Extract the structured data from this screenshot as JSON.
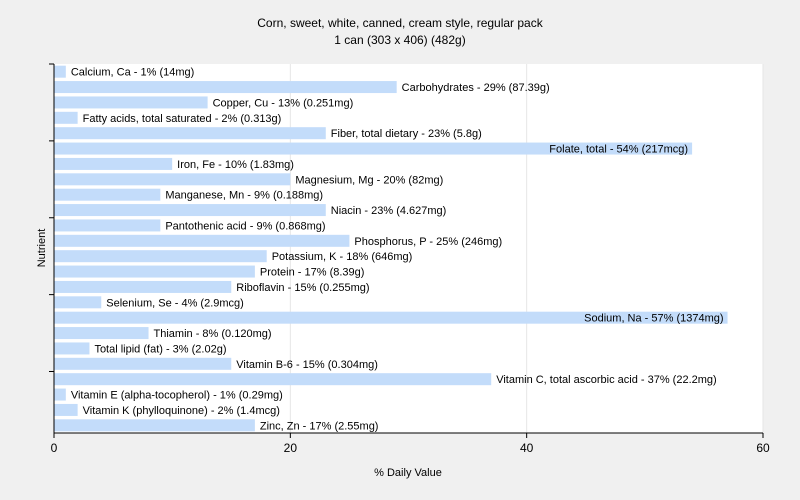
{
  "colors": {
    "background": "#f0f0f0",
    "plot_background": "#ffffff",
    "bar": "#c3dcfa",
    "axis": "#000000",
    "grid": "#e6e6e6"
  },
  "chart_data": {
    "type": "bar",
    "orientation": "horizontal",
    "title": "Corn, sweet, white, canned, cream style, regular pack",
    "subtitle": "1 can (303 x 406) (482g)",
    "xlabel": "% Daily Value",
    "ylabel": "Nutrient",
    "xlim": [
      0,
      60
    ],
    "xticks": [
      "0",
      "20",
      "40",
      "60"
    ],
    "grid": true,
    "categories": [
      "Calcium, Ca",
      "Carbohydrates",
      "Copper, Cu",
      "Fatty acids, total saturated",
      "Fiber, total dietary",
      "Folate, total",
      "Iron, Fe",
      "Magnesium, Mg",
      "Manganese, Mn",
      "Niacin",
      "Pantothenic acid",
      "Phosphorus, P",
      "Potassium, K",
      "Protein",
      "Riboflavin",
      "Selenium, Se",
      "Sodium, Na",
      "Thiamin",
      "Total lipid (fat)",
      "Vitamin B-6",
      "Vitamin C, total ascorbic acid",
      "Vitamin E (alpha-tocopherol)",
      "Vitamin K (phylloquinone)",
      "Zinc, Zn"
    ],
    "values": [
      1,
      29,
      13,
      2,
      23,
      54,
      10,
      20,
      9,
      23,
      9,
      25,
      18,
      17,
      15,
      4,
      57,
      8,
      3,
      15,
      37,
      1,
      2,
      17
    ],
    "labels": [
      "Calcium, Ca - 1% (14mg)",
      "Carbohydrates - 29% (87.39g)",
      "Copper, Cu - 13% (0.251mg)",
      "Fatty acids, total saturated - 2% (0.313g)",
      "Fiber, total dietary - 23% (5.8g)",
      "Folate, total - 54% (217mcg)",
      "Iron, Fe - 10% (1.83mg)",
      "Magnesium, Mg - 20% (82mg)",
      "Manganese, Mn - 9% (0.188mg)",
      "Niacin - 23% (4.627mg)",
      "Pantothenic acid - 9% (0.868mg)",
      "Phosphorus, P - 25% (246mg)",
      "Potassium, K - 18% (646mg)",
      "Protein - 17% (8.39g)",
      "Riboflavin - 15% (0.255mg)",
      "Selenium, Se - 4% (2.9mcg)",
      "Sodium, Na - 57% (1374mg)",
      "Thiamin - 8% (0.120mg)",
      "Total lipid (fat) - 3% (2.02g)",
      "Vitamin B-6 - 15% (0.304mg)",
      "Vitamin C, total ascorbic acid - 37% (22.2mg)",
      "Vitamin E (alpha-tocopherol) - 1% (0.29mg)",
      "Vitamin K (phylloquinone) - 2% (1.4mcg)",
      "Zinc, Zn - 17% (2.55mg)"
    ]
  }
}
